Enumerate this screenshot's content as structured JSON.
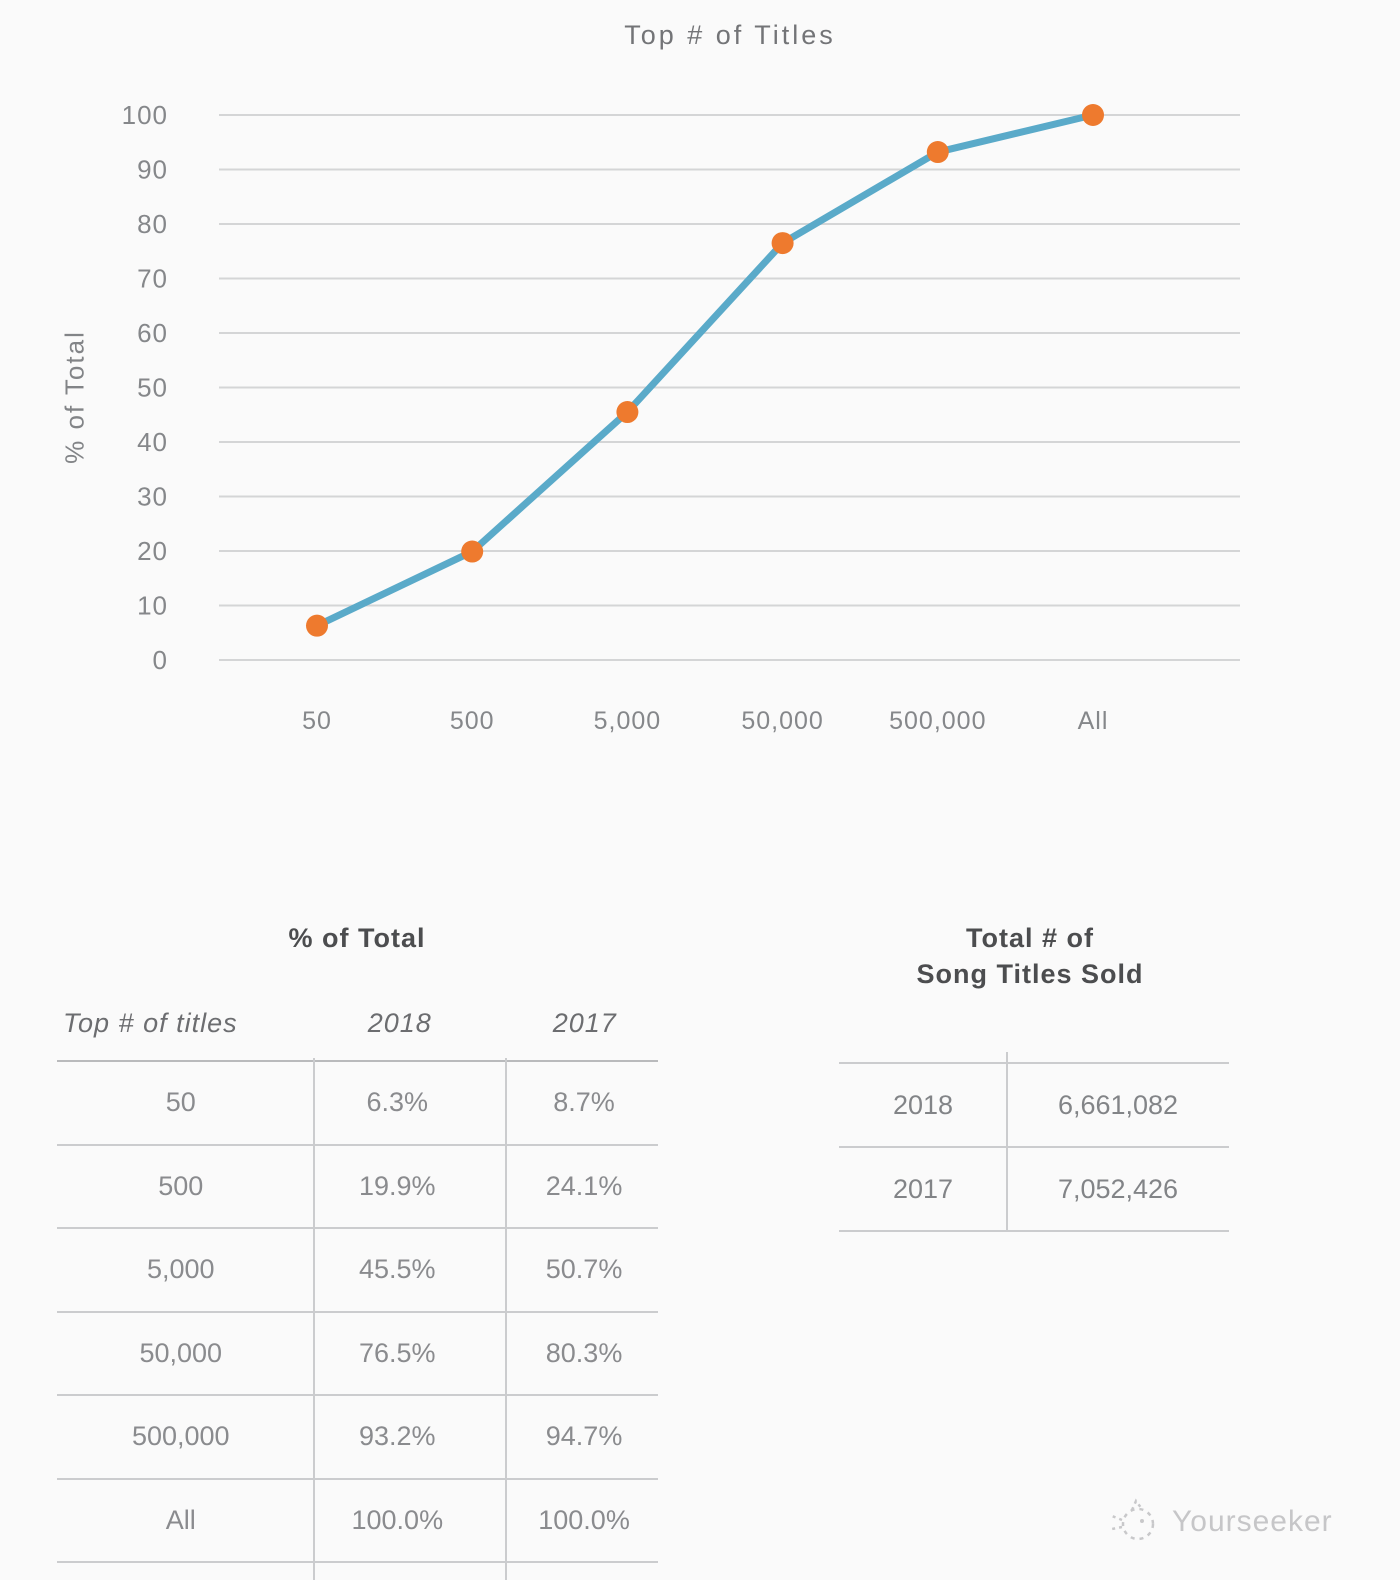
{
  "chart_data": {
    "type": "line",
    "title": "Top # of Titles",
    "ylabel": "% of Total",
    "categories": [
      "50",
      "500",
      "5,000",
      "50,000",
      "500,000",
      "All"
    ],
    "series": [
      {
        "name": "2018",
        "values": [
          6.3,
          19.9,
          45.5,
          76.5,
          93.2,
          100.0
        ]
      }
    ],
    "ylim": [
      0,
      100
    ],
    "ytick_step": 10,
    "grid": true,
    "legend": "none",
    "line_color": "#5aaac9",
    "marker_color": "#ee7a2e"
  },
  "tables": {
    "pct_of_total": {
      "title": "% of Total",
      "columns": [
        "Top # of titles",
        "2018",
        "2017"
      ],
      "rows": [
        [
          "50",
          "6.3%",
          "8.7%"
        ],
        [
          "500",
          "19.9%",
          "24.1%"
        ],
        [
          "5,000",
          "45.5%",
          "50.7%"
        ],
        [
          "50,000",
          "76.5%",
          "80.3%"
        ],
        [
          "500,000",
          "93.2%",
          "94.7%"
        ],
        [
          "All",
          "100.0%",
          "100.0%"
        ]
      ]
    },
    "titles_sold": {
      "title_line1": "Total # of",
      "title_line2": "Song Titles Sold",
      "rows": [
        [
          "2018",
          "6,661,082"
        ],
        [
          "2017",
          "7,052,426"
        ]
      ]
    }
  },
  "watermark": {
    "label": "Yourseeker"
  }
}
